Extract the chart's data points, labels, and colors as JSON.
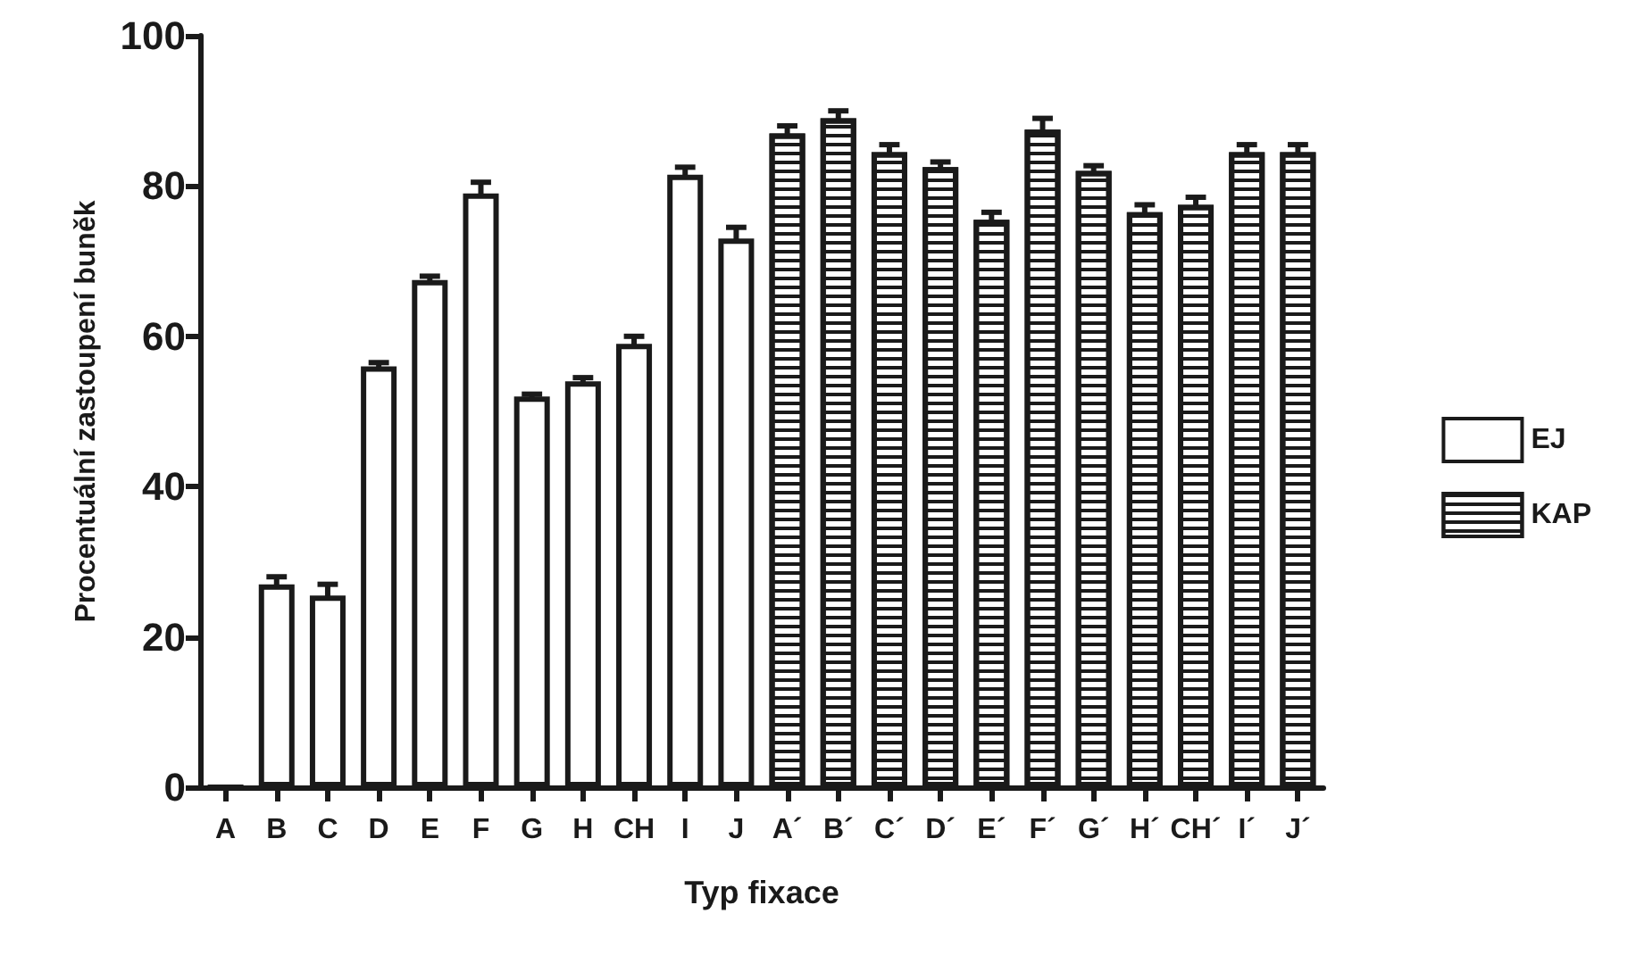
{
  "chart_data": {
    "type": "bar",
    "xlabel": "Typ fixace",
    "ylabel": "Procentuální zastoupení buněk",
    "categories": [
      "A",
      "B",
      "C",
      "D",
      "E",
      "F",
      "G",
      "H",
      "CH",
      "I",
      "J",
      "A´",
      "B´",
      "C´",
      "D´",
      "E´",
      "F´",
      "G´",
      "H´",
      "CH´",
      "I´",
      "J´"
    ],
    "series": [
      {
        "name": "EJ",
        "color": "#ffffff",
        "values": [
          0,
          27,
          25.5,
          56,
          67.5,
          79,
          52,
          54,
          59,
          81.5,
          73,
          null,
          null,
          null,
          null,
          null,
          null,
          null,
          null,
          null,
          null,
          null
        ],
        "errors": [
          null,
          1,
          1.5,
          0.5,
          0.5,
          1.5,
          0.3,
          0.5,
          1,
          1,
          1.5,
          null,
          null,
          null,
          null,
          null,
          null,
          null,
          null,
          null,
          null,
          null
        ]
      },
      {
        "name": "KAP",
        "color": "#ffffff",
        "values": [
          null,
          null,
          null,
          null,
          null,
          null,
          null,
          null,
          null,
          null,
          null,
          87,
          89,
          84.5,
          82.5,
          75.5,
          87.5,
          82,
          76.5,
          77.5,
          84.5,
          84.5
        ],
        "errors": [
          null,
          null,
          null,
          null,
          null,
          null,
          null,
          null,
          null,
          null,
          null,
          1,
          1,
          1,
          0.7,
          1,
          1.5,
          0.7,
          1,
          1,
          1,
          1
        ]
      }
    ],
    "ylim": [
      0,
      100
    ],
    "yticks": [
      0,
      20,
      40,
      60,
      80,
      100
    ],
    "grid": false,
    "legend": "right"
  }
}
